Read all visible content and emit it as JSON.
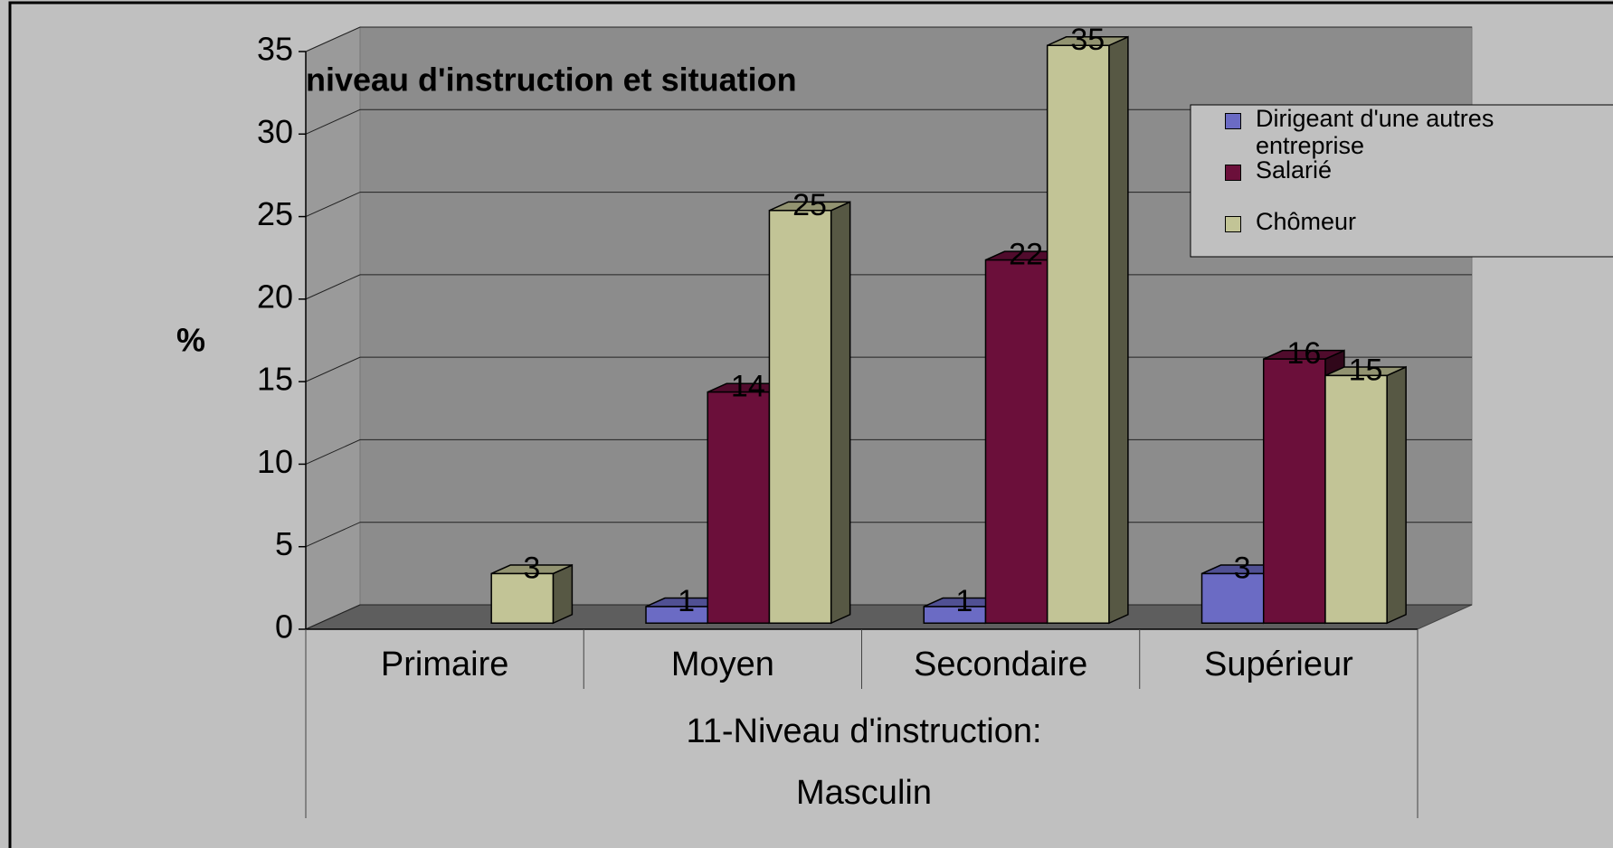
{
  "chart_data": {
    "type": "bar3d",
    "title": "niveau d'instruction et situation",
    "ylabel": "%",
    "xlabel_lines": [
      "11-Niveau d'instruction:",
      "Masculin"
    ],
    "categories": [
      "Primaire",
      "Moyen",
      "Secondaire",
      "Supérieur"
    ],
    "series": [
      {
        "name": "Dirigeant d'une autres entreprise",
        "color": "#6b6bc4",
        "values": [
          null,
          1,
          1,
          3
        ]
      },
      {
        "name": "Salarié",
        "color": "#6b0f3a",
        "values": [
          null,
          14,
          22,
          16
        ]
      },
      {
        "name": "Chômeur",
        "color": "#c2c496",
        "values": [
          3,
          25,
          35,
          15
        ]
      }
    ],
    "ylim": [
      0,
      35
    ],
    "yticks": [
      0,
      5,
      10,
      15,
      20,
      25,
      30,
      35
    ],
    "grid": true,
    "legend": "right"
  }
}
